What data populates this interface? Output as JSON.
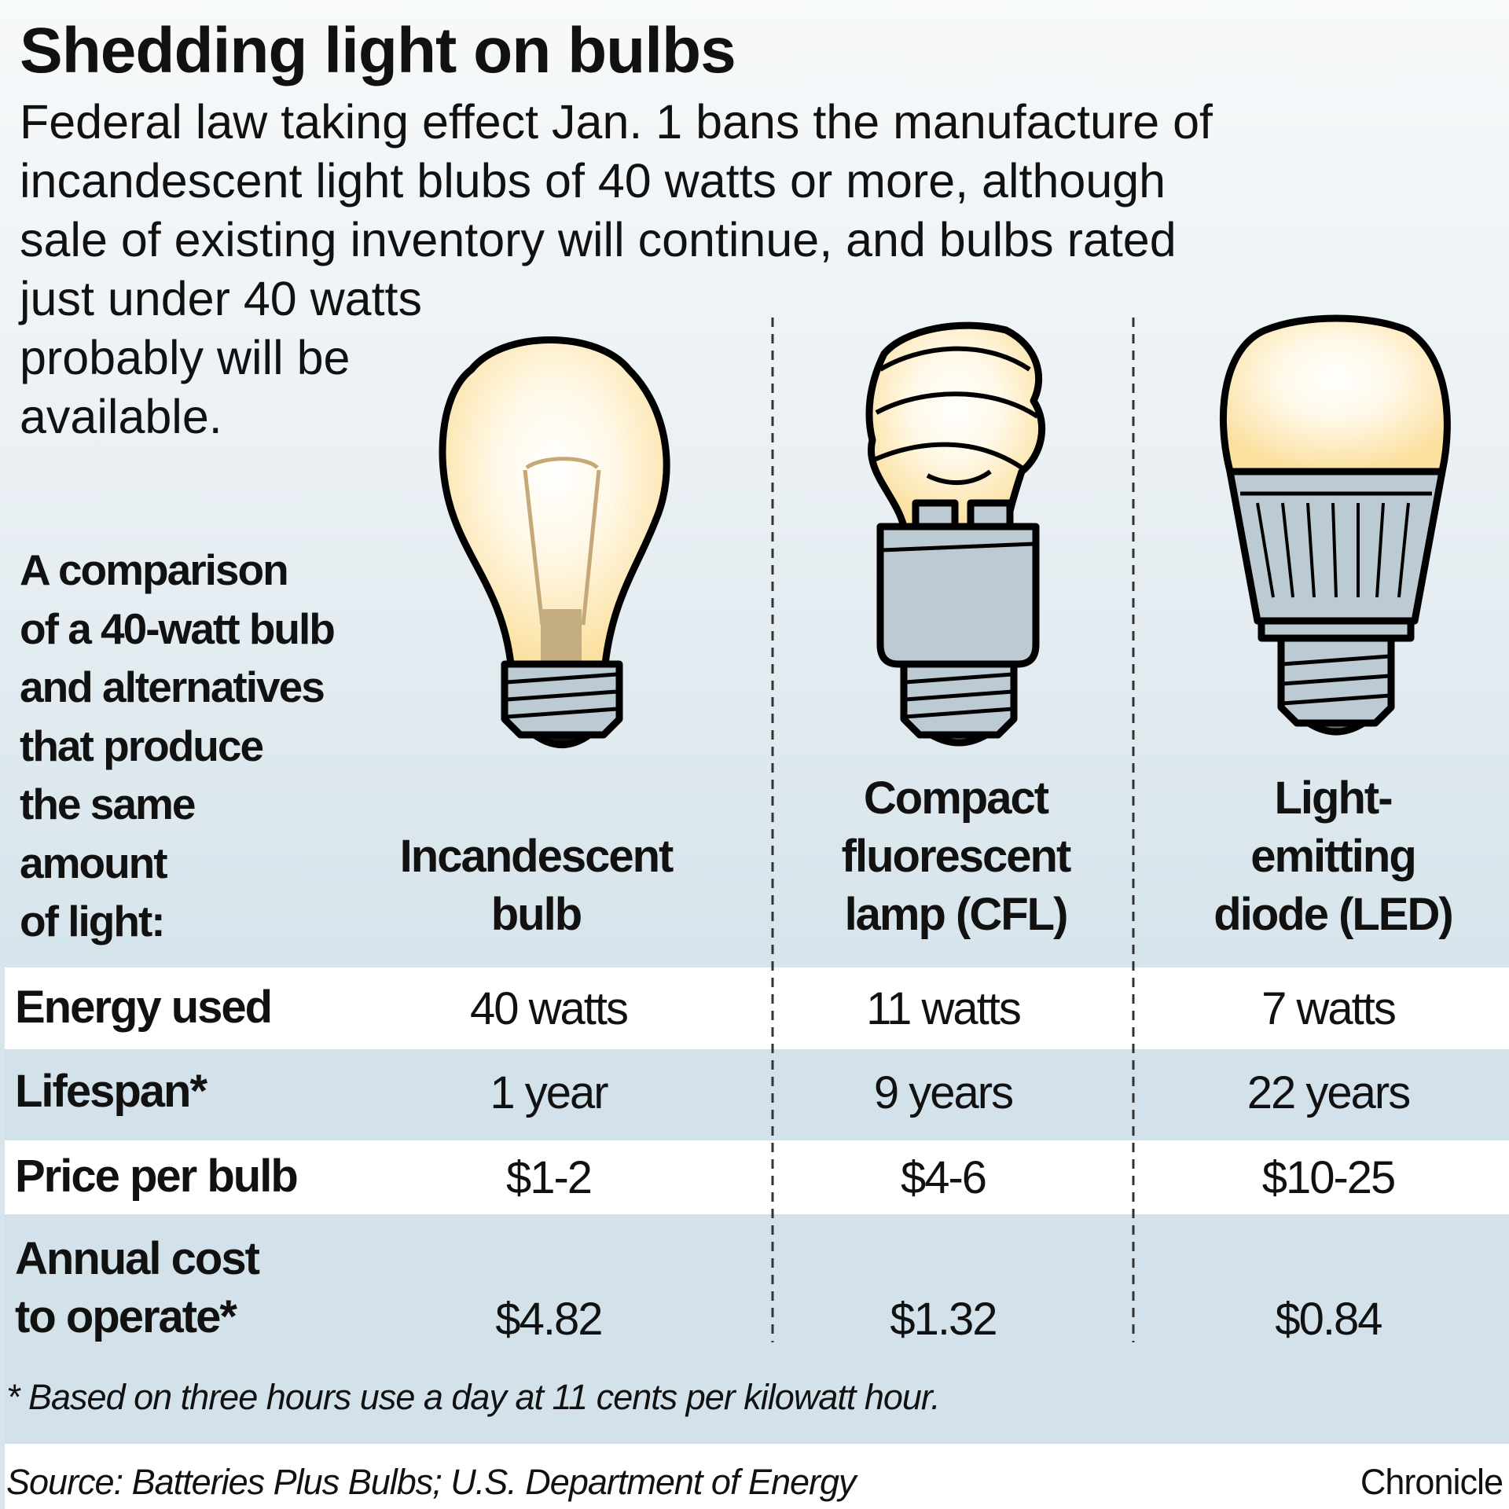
{
  "title": "Shedding light on bulbs",
  "intro_lines": [
    "Federal law taking effect Jan. 1 bans the manufacture of",
    "incandescent light blubs of 40 watts or more, although",
    "sale of  existing inventory will continue, and bulbs rated",
    "just under 40 watts",
    "probably will be",
    "available."
  ],
  "comparison_lines": [
    "A comparison",
    "of a 40-watt bulb",
    "and alternatives",
    "that produce",
    "the same",
    "amount",
    "of light:"
  ],
  "columns": [
    {
      "lines": [
        "Incandescent",
        "bulb"
      ],
      "icon": "incandescent-bulb-icon"
    },
    {
      "lines": [
        "Compact",
        "fluorescent",
        "lamp (CFL)"
      ],
      "icon": "cfl-bulb-icon"
    },
    {
      "lines": [
        "Light-",
        "emitting",
        "diode (LED)"
      ],
      "icon": "led-bulb-icon"
    }
  ],
  "rows": [
    {
      "label_lines": [
        "Energy used"
      ],
      "values": [
        "40 watts",
        "11 watts",
        "7 watts"
      ]
    },
    {
      "label_lines": [
        "Lifespan*"
      ],
      "values": [
        "1 year",
        "9 years",
        "22 years"
      ]
    },
    {
      "label_lines": [
        "Price per bulb"
      ],
      "values": [
        "$1-2",
        "$4-6",
        "$10-25"
      ]
    },
    {
      "label_lines": [
        "Annual cost",
        "to operate*"
      ],
      "values": [
        "$4.82",
        "$1.32",
        "$0.84"
      ]
    }
  ],
  "footnote": "* Based on three hours use a day at 11 cents per kilowatt hour.",
  "source": "Source: Batteries Plus Bulbs; U.S. Department of Energy",
  "credit": "Chronicle",
  "colors": {
    "row_blue": "#d3e2ea",
    "bulb_glow": "#fbe3a6",
    "metal": "#bccbd3"
  }
}
